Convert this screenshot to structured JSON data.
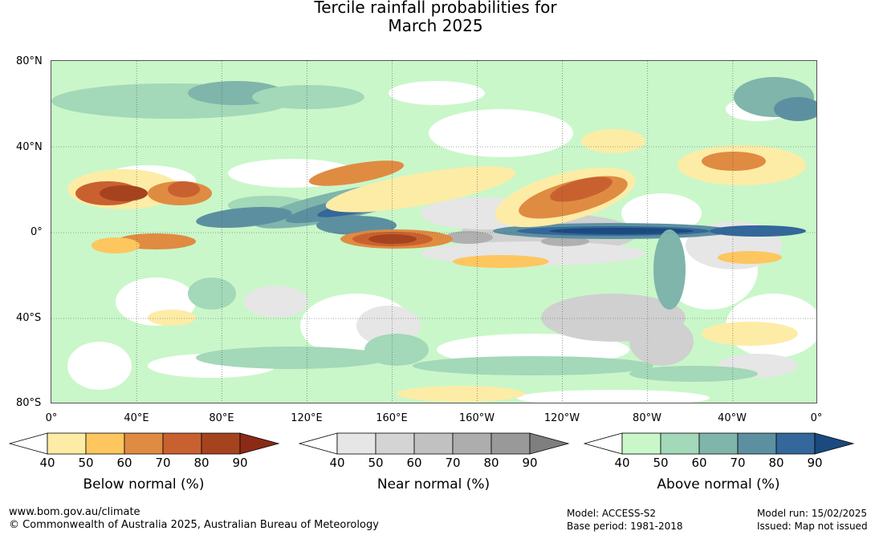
{
  "title": {
    "line1": "Tercile rainfall probabilities for",
    "line2": "March 2025"
  },
  "latitude_labels": [
    "80°N",
    "40°N",
    "0°",
    "40°S",
    "80°S"
  ],
  "longitude_labels": [
    "0°",
    "40°E",
    "80°E",
    "120°E",
    "160°E",
    "160°W",
    "120°W",
    "80°W",
    "40°W",
    "0°"
  ],
  "legends": [
    {
      "title": "Below normal (%)",
      "ticks": [
        "40",
        "50",
        "60",
        "70",
        "80",
        "90"
      ],
      "colors": [
        "#ffffff",
        "#fdeca6",
        "#fdc65f",
        "#e08b42",
        "#c8612f",
        "#a6431f",
        "#8b2b15"
      ]
    },
    {
      "title": "Near normal (%)",
      "ticks": [
        "40",
        "50",
        "60",
        "70",
        "80",
        "90"
      ],
      "colors": [
        "#ffffff",
        "#e6e6e6",
        "#d4d4d4",
        "#c1c1c1",
        "#adadad",
        "#999999",
        "#7f7f7f"
      ]
    },
    {
      "title": "Above normal (%)",
      "ticks": [
        "40",
        "50",
        "60",
        "70",
        "80",
        "90"
      ],
      "colors": [
        "#ffffff",
        "#c9f7c9",
        "#a3d8b8",
        "#7fb5ab",
        "#5c90a0",
        "#34679a",
        "#1a4a80"
      ]
    }
  ],
  "footer": {
    "url": "www.bom.gov.au/climate",
    "copyright": "© Commonwealth of Australia 2025, Australian Bureau of Meteorology",
    "model": "Model: ACCESS-S2",
    "base_period": "Base period: 1981-2018",
    "model_run": "Model run: 15/02/2025",
    "issued": "Issued: Map not issued"
  }
}
